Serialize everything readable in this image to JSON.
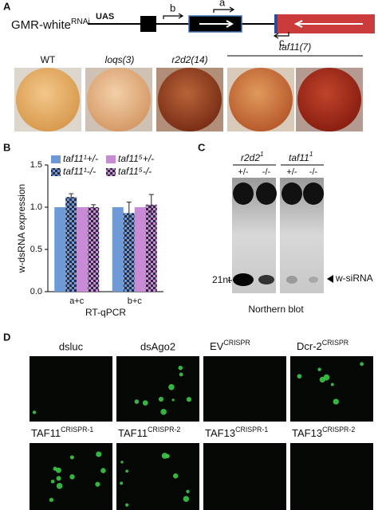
{
  "panel_labels": [
    "A",
    "B",
    "C",
    "D"
  ],
  "panel_a": {
    "construct_name": "GMR-white",
    "construct_sup": "RNAi",
    "promoter": "UAS",
    "primers": [
      "b",
      "a",
      "c"
    ],
    "genotypes": [
      "WT",
      "loqs(3)",
      "r2d2(14)",
      "taf11(7)"
    ]
  },
  "chart_data": {
    "type": "bar",
    "categories": [
      "a+c",
      "b+c"
    ],
    "series": [
      {
        "name": "taf11¹+/-",
        "color": "#6f9ad8",
        "pattern": "solid",
        "values": [
          1.0,
          1.0
        ],
        "errors": [
          null,
          null
        ]
      },
      {
        "name": "taf11¹-/-",
        "color": "#6f9ad8",
        "pattern": "checker",
        "values": [
          1.12,
          0.93
        ],
        "errors": [
          0.04,
          0.13
        ]
      },
      {
        "name": "taf11⁵+/-",
        "color": "#c98ad6",
        "pattern": "solid",
        "values": [
          1.0,
          1.0
        ],
        "errors": [
          null,
          null
        ]
      },
      {
        "name": "taf11⁵-/-",
        "color": "#c98ad6",
        "pattern": "checker",
        "values": [
          1.0,
          1.03
        ],
        "errors": [
          0.03,
          0.12
        ]
      }
    ],
    "ylim": [
      0,
      1.5
    ],
    "yticks": [
      {
        "value": 0,
        "label": "0.0"
      },
      {
        "value": 0.5,
        "label": "0.5"
      },
      {
        "value": 1,
        "label": "1.0"
      },
      {
        "value": 1.5,
        "label": "1.5"
      }
    ],
    "y_label": "w-dsRNA expression",
    "x_label": "RT-qPCR"
  },
  "panel_c": {
    "groups": [
      {
        "name": "r2d2",
        "sup": "1"
      },
      {
        "name": "taf11",
        "sup": "1"
      }
    ],
    "lanes": [
      "+/-",
      "-/-",
      "+/-",
      "-/-"
    ],
    "marker": "21nt",
    "band_label": "w-siRNA",
    "caption": "Northern blot"
  },
  "panel_d": {
    "tiles": [
      {
        "name": "dsluc"
      },
      {
        "name": "dsAgo2"
      },
      {
        "name": "EV",
        "sup": "CRISPR"
      },
      {
        "name": "Dcr-2",
        "sup": "CRISPR"
      },
      {
        "name": "TAF11",
        "sup": "CRISPR-1"
      },
      {
        "name": "TAF11",
        "sup": "CRISPR-2"
      },
      {
        "name": "TAF13",
        "sup": "CRISPR-1"
      },
      {
        "name": "TAF13",
        "sup": "CRISPR-2"
      }
    ]
  }
}
